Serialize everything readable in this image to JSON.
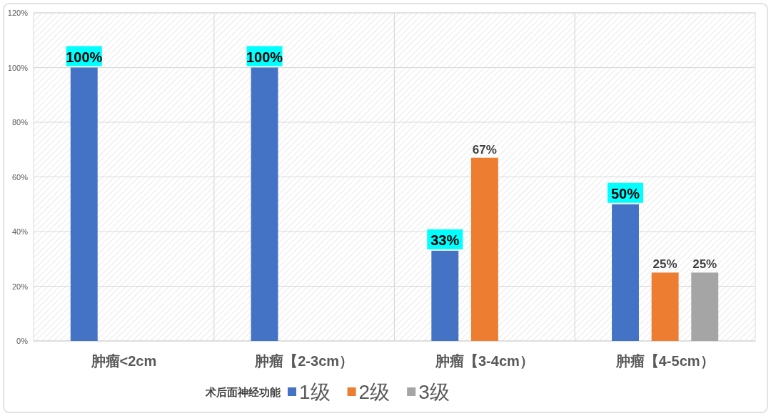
{
  "chart_data": {
    "type": "bar",
    "categories": [
      "肿瘤<2cm",
      "肿瘤【2-3cm）",
      "肿瘤【3-4cm）",
      "肿瘤【4-5cm）"
    ],
    "series": [
      {
        "name": "1级",
        "color": "#4472c4",
        "values": [
          100,
          100,
          33,
          50
        ],
        "value_labels": [
          "100%",
          "100%",
          "33%",
          "50%"
        ]
      },
      {
        "name": "2级",
        "color": "#ed7d31",
        "values": [
          null,
          null,
          67,
          25
        ],
        "value_labels": [
          null,
          null,
          "67%",
          "25%"
        ]
      },
      {
        "name": "3级",
        "color": "#a5a5a5",
        "values": [
          null,
          null,
          null,
          25
        ],
        "value_labels": [
          null,
          null,
          null,
          "25%"
        ]
      }
    ],
    "ylim": [
      0,
      120
    ],
    "yticks": [
      {
        "value": 0,
        "label": "0%"
      },
      {
        "value": 20,
        "label": "20%"
      },
      {
        "value": 40,
        "label": "40%"
      },
      {
        "value": 60,
        "label": "60%"
      },
      {
        "value": 80,
        "label": "80%"
      },
      {
        "value": 100,
        "label": "100%"
      },
      {
        "value": 120,
        "label": "120%"
      }
    ],
    "grid": true,
    "legend": "bottom",
    "legend_title": "术后面神经功能"
  }
}
